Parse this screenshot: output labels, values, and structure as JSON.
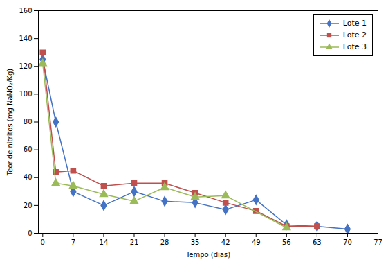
{
  "chart_data": {
    "type": "line",
    "x": [
      0,
      3,
      7,
      14,
      21,
      28,
      35,
      42,
      49,
      56,
      63,
      70
    ],
    "series": [
      {
        "name": "Lote 1",
        "color": "#4472C4",
        "marker": "diamond",
        "values": [
          125,
          80,
          30,
          20,
          30,
          23,
          22,
          17,
          24,
          6,
          5,
          3
        ]
      },
      {
        "name": "Lote 2",
        "color": "#C0504D",
        "marker": "square",
        "values": [
          130,
          44,
          45,
          34,
          36,
          36,
          29,
          22,
          16,
          5,
          5,
          null
        ]
      },
      {
        "name": "Lote 3",
        "color": "#9BBB59",
        "marker": "triangle",
        "values": [
          122,
          36,
          34,
          28,
          23,
          33,
          26,
          27,
          null,
          4,
          null,
          null
        ]
      }
    ],
    "xlabel": "Tempo (dias)",
    "ylabel": "Teor de nitritos (mg NaNO₂/Kg)",
    "xlim": [
      -1,
      77
    ],
    "ylim": [
      0,
      160
    ],
    "xticks": [
      0,
      7,
      14,
      21,
      28,
      35,
      42,
      49,
      56,
      63,
      70,
      77
    ],
    "yticks": [
      0,
      20,
      40,
      60,
      80,
      100,
      120,
      140,
      160
    ],
    "grid": false,
    "legend": "upper right"
  }
}
